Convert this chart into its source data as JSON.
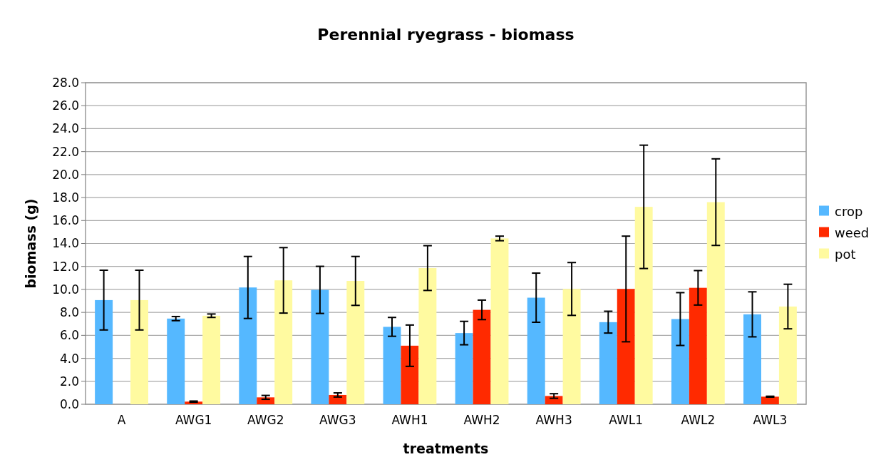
{
  "chart_data": {
    "type": "bar",
    "title": "Perennial ryegrass - biomass",
    "xlabel": "treatments",
    "ylabel": "biomass (g)",
    "categories": [
      "A",
      "AWG1",
      "AWG2",
      "AWG3",
      "AWH1",
      "AWH2",
      "AWH3",
      "AWL1",
      "AWL2",
      "AWL3"
    ],
    "series": [
      {
        "name": "crop",
        "color": "#55b8ff",
        "values": [
          9.07,
          7.46,
          10.17,
          9.96,
          6.74,
          6.2,
          9.28,
          7.15,
          7.42,
          7.83
        ],
        "errors": [
          2.6,
          0.18,
          2.7,
          2.05,
          0.82,
          1.02,
          2.14,
          0.95,
          2.3,
          1.96
        ]
      },
      {
        "name": "weed",
        "color": "#ff2a00",
        "values": [
          null,
          0.23,
          0.6,
          0.81,
          5.1,
          8.22,
          0.72,
          10.04,
          10.14,
          0.66
        ],
        "errors": [
          null,
          0.05,
          0.17,
          0.18,
          1.8,
          0.85,
          0.2,
          4.6,
          1.5,
          0.04
        ]
      },
      {
        "name": "pot",
        "color": "#fffaa0",
        "values": [
          9.07,
          7.71,
          10.79,
          10.74,
          11.86,
          14.44,
          10.04,
          17.19,
          17.6,
          8.51
        ],
        "errors": [
          2.6,
          0.15,
          2.85,
          2.13,
          1.95,
          0.2,
          2.3,
          5.37,
          3.77,
          1.94
        ]
      }
    ],
    "ylim": [
      0,
      28
    ],
    "yticks": [
      {
        "value": 0,
        "label": "0.0"
      },
      {
        "value": 2,
        "label": "2.0"
      },
      {
        "value": 4,
        "label": "4.0"
      },
      {
        "value": 6,
        "label": "6.0"
      },
      {
        "value": 8,
        "label": "8.0"
      },
      {
        "value": 10,
        "label": "10.0"
      },
      {
        "value": 12,
        "label": "12.0"
      },
      {
        "value": 14,
        "label": "14.0"
      },
      {
        "value": 16,
        "label": "16.0"
      },
      {
        "value": 18,
        "label": "18.0"
      },
      {
        "value": 20,
        "label": "20.0"
      },
      {
        "value": 22,
        "label": "22.0"
      },
      {
        "value": 24,
        "label": "24.0"
      },
      {
        "value": 26,
        "label": "26.0"
      },
      {
        "value": 28,
        "label": "28.0"
      }
    ],
    "grid": "y",
    "legend": "right"
  }
}
